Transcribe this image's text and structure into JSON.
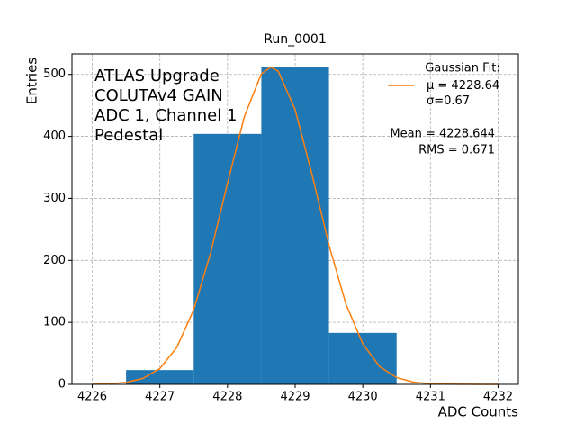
{
  "chart_data": {
    "type": "histogram",
    "title": "Run_0001",
    "x_label": "ADC Counts",
    "y_label": "Entries",
    "bins": [
      4226.5,
      4227.5,
      4228.5,
      4229.5,
      4230.5
    ],
    "counts": [
      23,
      404,
      512,
      83
    ],
    "color": "#1f77b4",
    "fit": {
      "name": "μ = 4228.64\nσ=0.67",
      "color": "#ff7f0e",
      "x": [
        4226,
        4226.25,
        4226.5,
        4226.75,
        4227,
        4227.25,
        4227.5,
        4227.75,
        4228,
        4228.25,
        4228.5,
        4228.64,
        4228.75,
        4229,
        4229.25,
        4229.5,
        4229.75,
        4230,
        4230.25,
        4230.5,
        4230.75,
        4231,
        4231.25,
        4231.5,
        4231.75,
        4232
      ],
      "values": [
        0.2,
        0.9,
        3.1,
        9.6,
        25.6,
        59.5,
        120.4,
        211.9,
        324.5,
        432.2,
        500.9,
        512,
        505.1,
        443.2,
        338.3,
        224.7,
        129.8,
        65.3,
        28.5,
        10.9,
        3.6,
        1.0,
        0.3,
        0.1,
        0,
        0
      ]
    },
    "legend_title": "Gaussian Fit:",
    "annotation_lines": [
      "ATLAS Upgrade",
      "COLUTAv4 GAIN",
      "ADC 1, Channel 1",
      "Pedestal"
    ],
    "stats_lines": [
      "Mean = 4228.644",
      "RMS = 0.671"
    ],
    "xlim": [
      4225.7,
      4232.3
    ],
    "ylim": [
      0,
      533
    ],
    "xticks": [
      4226,
      4227,
      4228,
      4229,
      4230,
      4231,
      4232
    ],
    "yticks": [
      0,
      100,
      200,
      300,
      400,
      500
    ],
    "grid": true
  }
}
